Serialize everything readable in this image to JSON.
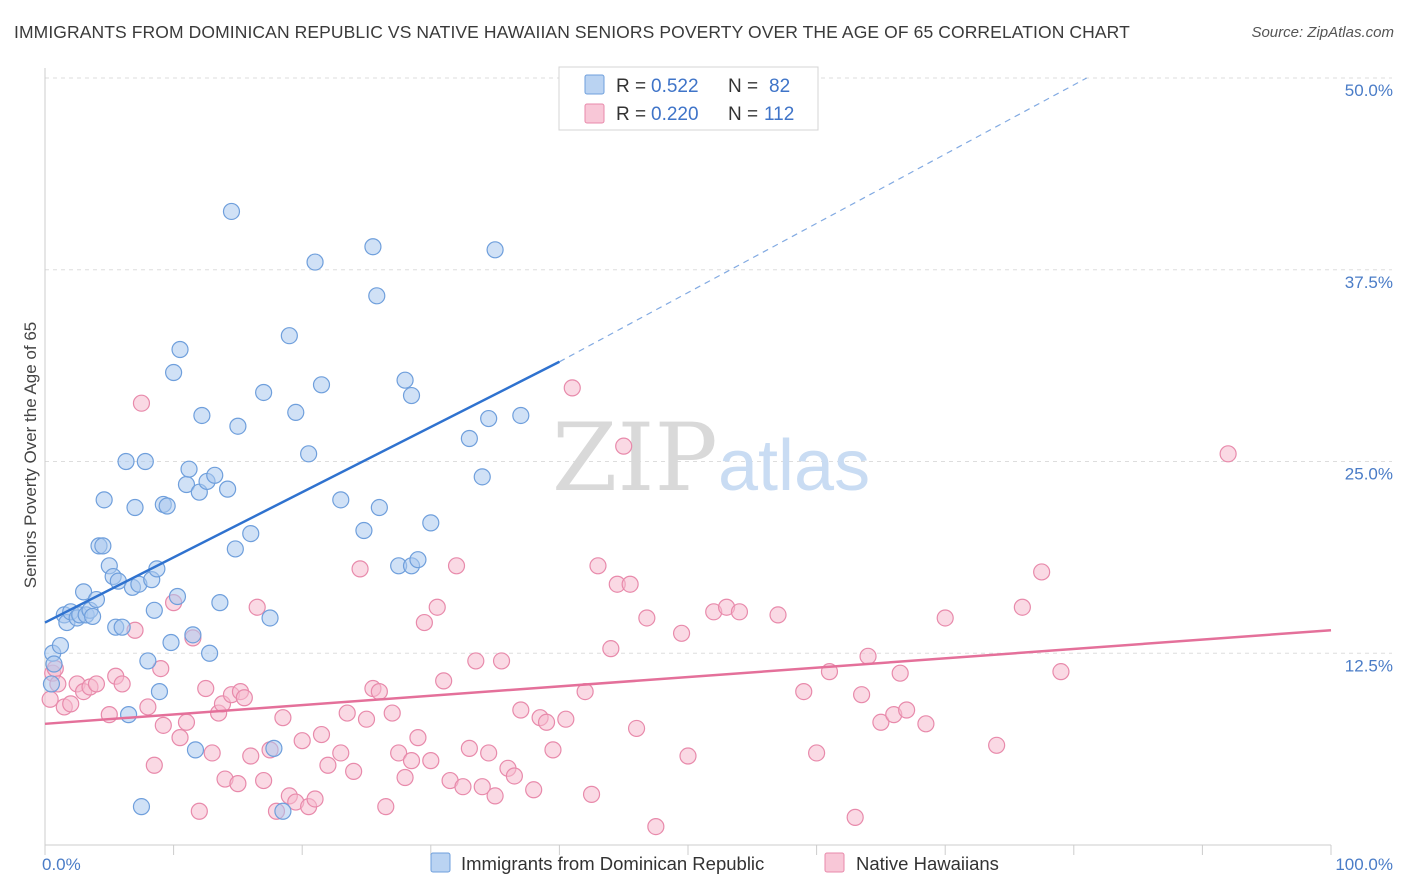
{
  "title": "IMMIGRANTS FROM DOMINICAN REPUBLIC VS NATIVE HAWAIIAN SENIORS POVERTY OVER THE AGE OF 65 CORRELATION CHART",
  "source": "Source: ZipAtlas.com",
  "watermark": {
    "zip": "ZIP",
    "atlas": "atlas"
  },
  "colors": {
    "blue_fill": "#a9c8ef",
    "blue_stroke": "#6f9fdc",
    "blue_line": "#2f72cf",
    "pink_fill": "#f6b9cd",
    "pink_stroke": "#e88aab",
    "pink_line": "#e4709a",
    "grid": "#dddddd",
    "tick_label": "#4a7cc7"
  },
  "legend": {
    "rows": [
      {
        "r_label": "R = ",
        "r_value": "0.522",
        "n_label": "N = ",
        "n_value": "82",
        "series": "blue"
      },
      {
        "r_label": "R = ",
        "r_value": "0.220",
        "n_label": "N = ",
        "n_value": "112",
        "series": "pink"
      }
    ]
  },
  "chart_data": {
    "type": "scatter",
    "title": "IMMIGRANTS FROM DOMINICAN REPUBLIC VS NATIVE HAWAIIAN SENIORS POVERTY OVER THE AGE OF 65 CORRELATION CHART",
    "xlabel": "",
    "ylabel": "Seniors Poverty Over the Age of 65",
    "xlim": [
      0,
      100
    ],
    "ylim": [
      0,
      50
    ],
    "x_ticks": [
      "0.0%",
      "100.0%"
    ],
    "y_ticks": [
      {
        "value": 12.5,
        "label": "12.5%"
      },
      {
        "value": 25.0,
        "label": "25.0%"
      },
      {
        "value": 37.5,
        "label": "37.5%"
      },
      {
        "value": 50.0,
        "label": "50.0%"
      }
    ],
    "grid": true,
    "legend_position": "top-center",
    "series": [
      {
        "name": "Immigrants from Dominican Republic",
        "color": "blue",
        "trend": {
          "x": [
            0,
            40
          ],
          "y": [
            14.5,
            31.5
          ],
          "dashed_to": {
            "x": 81,
            "y": 50
          }
        },
        "points": [
          [
            0.5,
            10.5
          ],
          [
            0.6,
            12.5
          ],
          [
            0.7,
            11.8
          ],
          [
            1.2,
            13
          ],
          [
            1.5,
            15
          ],
          [
            1.7,
            14.5
          ],
          [
            2,
            15.2
          ],
          [
            2.5,
            14.8
          ],
          [
            2.7,
            15
          ],
          [
            3,
            16.5
          ],
          [
            3.2,
            15
          ],
          [
            3.5,
            15.3
          ],
          [
            3.7,
            14.9
          ],
          [
            4,
            16
          ],
          [
            4.2,
            19.5
          ],
          [
            4.5,
            19.5
          ],
          [
            4.6,
            22.5
          ],
          [
            5,
            18.2
          ],
          [
            5.3,
            17.5
          ],
          [
            5.5,
            14.2
          ],
          [
            5.7,
            17.2
          ],
          [
            6,
            14.2
          ],
          [
            6.3,
            25
          ],
          [
            6.5,
            8.5
          ],
          [
            6.8,
            16.8
          ],
          [
            7,
            22
          ],
          [
            7.3,
            17
          ],
          [
            7.5,
            2.5
          ],
          [
            7.8,
            25
          ],
          [
            8,
            12
          ],
          [
            8.3,
            17.3
          ],
          [
            8.5,
            15.3
          ],
          [
            8.7,
            18
          ],
          [
            8.9,
            10
          ],
          [
            9.2,
            22.2
          ],
          [
            9.5,
            22.1
          ],
          [
            9.8,
            13.2
          ],
          [
            10,
            30.8
          ],
          [
            10.3,
            16.2
          ],
          [
            10.5,
            32.3
          ],
          [
            11,
            23.5
          ],
          [
            11.2,
            24.5
          ],
          [
            11.5,
            13.7
          ],
          [
            11.7,
            6.2
          ],
          [
            12,
            23
          ],
          [
            12.2,
            28
          ],
          [
            12.6,
            23.7
          ],
          [
            12.8,
            12.5
          ],
          [
            13.2,
            24.1
          ],
          [
            13.6,
            15.8
          ],
          [
            14.2,
            23.2
          ],
          [
            14.5,
            41.3
          ],
          [
            14.8,
            19.3
          ],
          [
            15,
            27.3
          ],
          [
            16,
            20.3
          ],
          [
            17,
            29.5
          ],
          [
            17.5,
            14.8
          ],
          [
            17.8,
            6.3
          ],
          [
            18.5,
            2.2
          ],
          [
            19,
            33.2
          ],
          [
            19.5,
            28.2
          ],
          [
            20.5,
            25.5
          ],
          [
            21,
            38
          ],
          [
            21.5,
            30
          ],
          [
            23,
            22.5
          ],
          [
            24.8,
            20.5
          ],
          [
            25.5,
            39
          ],
          [
            25.8,
            35.8
          ],
          [
            26,
            22
          ],
          [
            27.5,
            18.2
          ],
          [
            28.5,
            18.2
          ],
          [
            29,
            18.6
          ],
          [
            28,
            30.3
          ],
          [
            28.5,
            29.3
          ],
          [
            30,
            21
          ],
          [
            33,
            26.5
          ],
          [
            34,
            24
          ],
          [
            34.5,
            27.8
          ],
          [
            35,
            38.8
          ],
          [
            37,
            28
          ]
        ]
      },
      {
        "name": "Native Hawaiians",
        "color": "pink",
        "trend": {
          "x": [
            0,
            100
          ],
          "y": [
            7.9,
            14
          ]
        },
        "points": [
          [
            0.4,
            9.5
          ],
          [
            0.6,
            11.2
          ],
          [
            0.8,
            11.5
          ],
          [
            1,
            10.5
          ],
          [
            1.5,
            9
          ],
          [
            2,
            9.2
          ],
          [
            2.5,
            10.5
          ],
          [
            3,
            10
          ],
          [
            3.5,
            10.3
          ],
          [
            4,
            10.5
          ],
          [
            5,
            8.5
          ],
          [
            5.5,
            11
          ],
          [
            6,
            10.5
          ],
          [
            7,
            14
          ],
          [
            7.5,
            28.8
          ],
          [
            8,
            9
          ],
          [
            8.5,
            5.2
          ],
          [
            9,
            11.5
          ],
          [
            9.2,
            7.8
          ],
          [
            10,
            15.8
          ],
          [
            10.5,
            7
          ],
          [
            11,
            8
          ],
          [
            11.5,
            13.5
          ],
          [
            12,
            2.2
          ],
          [
            12.5,
            10.2
          ],
          [
            13,
            6
          ],
          [
            13.5,
            8.6
          ],
          [
            13.8,
            9.2
          ],
          [
            14,
            4.3
          ],
          [
            14.5,
            9.8
          ],
          [
            15,
            4
          ],
          [
            15.2,
            10
          ],
          [
            15.5,
            9.6
          ],
          [
            16,
            5.8
          ],
          [
            16.5,
            15.5
          ],
          [
            17,
            4.2
          ],
          [
            17.5,
            6.2
          ],
          [
            18,
            2.2
          ],
          [
            18.5,
            8.3
          ],
          [
            19,
            3.2
          ],
          [
            19.5,
            2.8
          ],
          [
            20,
            6.8
          ],
          [
            20.5,
            2.5
          ],
          [
            21,
            3
          ],
          [
            21.5,
            7.2
          ],
          [
            22,
            5.2
          ],
          [
            23,
            6
          ],
          [
            23.5,
            8.6
          ],
          [
            24,
            4.8
          ],
          [
            24.5,
            18
          ],
          [
            25,
            8.2
          ],
          [
            25.5,
            10.2
          ],
          [
            26,
            10
          ],
          [
            26.5,
            2.5
          ],
          [
            27,
            8.6
          ],
          [
            27.5,
            6
          ],
          [
            28,
            4.4
          ],
          [
            28.5,
            5.5
          ],
          [
            29,
            7
          ],
          [
            29.5,
            14.5
          ],
          [
            30,
            5.5
          ],
          [
            30.5,
            15.5
          ],
          [
            31,
            10.7
          ],
          [
            31.5,
            4.2
          ],
          [
            32,
            18.2
          ],
          [
            32.5,
            3.8
          ],
          [
            33,
            6.3
          ],
          [
            33.5,
            12
          ],
          [
            34,
            3.8
          ],
          [
            34.5,
            6
          ],
          [
            35,
            3.2
          ],
          [
            35.5,
            12
          ],
          [
            36,
            5
          ],
          [
            36.5,
            4.5
          ],
          [
            37,
            8.8
          ],
          [
            38,
            3.6
          ],
          [
            38.5,
            8.3
          ],
          [
            39,
            8
          ],
          [
            39.5,
            6.2
          ],
          [
            40.5,
            8.2
          ],
          [
            41,
            29.8
          ],
          [
            42,
            10
          ],
          [
            42.5,
            3.3
          ],
          [
            43,
            18.2
          ],
          [
            44,
            12.8
          ],
          [
            44.5,
            17
          ],
          [
            45,
            26
          ],
          [
            45.5,
            17
          ],
          [
            46,
            7.6
          ],
          [
            46.8,
            14.8
          ],
          [
            47.5,
            1.2
          ],
          [
            49.5,
            13.8
          ],
          [
            50,
            5.8
          ],
          [
            52,
            15.2
          ],
          [
            53,
            15.5
          ],
          [
            54,
            15.2
          ],
          [
            57,
            15
          ],
          [
            59,
            10
          ],
          [
            60,
            6
          ],
          [
            61,
            11.3
          ],
          [
            63,
            1.8
          ],
          [
            63.5,
            9.8
          ],
          [
            64,
            12.3
          ],
          [
            65,
            8
          ],
          [
            66,
            8.5
          ],
          [
            66.5,
            11.2
          ],
          [
            67,
            8.8
          ],
          [
            68.5,
            7.9
          ],
          [
            70,
            14.8
          ],
          [
            74,
            6.5
          ],
          [
            76,
            15.5
          ],
          [
            77.5,
            17.8
          ],
          [
            79,
            11.3
          ],
          [
            92,
            25.5
          ]
        ]
      }
    ]
  },
  "bottom_legend": [
    {
      "label": "Immigrants from Dominican Republic",
      "series": "blue"
    },
    {
      "label": "Native Hawaiians",
      "series": "pink"
    }
  ]
}
